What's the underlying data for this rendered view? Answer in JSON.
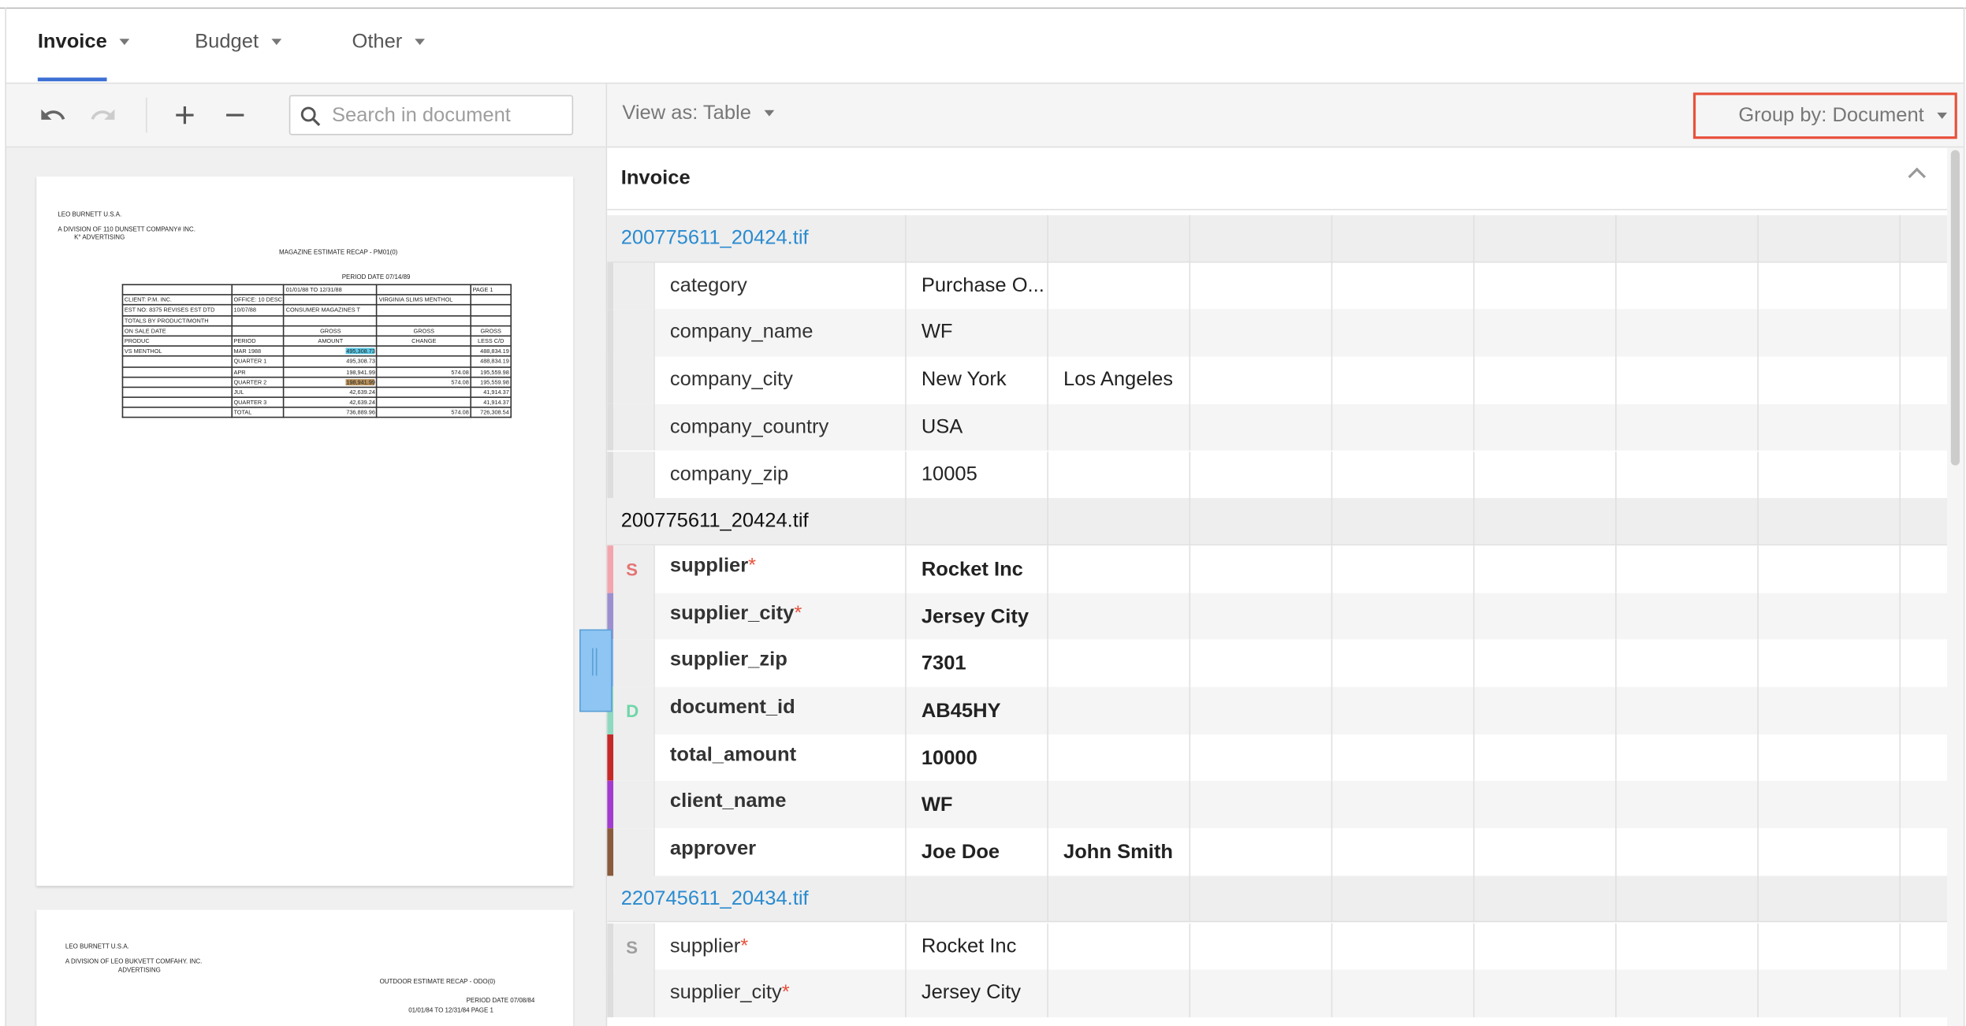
{
  "tabs": [
    "Invoice",
    "Budget",
    "Other"
  ],
  "toolbar": {
    "search_placeholder": "Search in document",
    "view_as": "View as: Table",
    "group_by": "Group by: Document"
  },
  "documents": [
    {
      "lines": [
        "LEO BURNETT U.S.A.",
        "A DIVISION OF 110 DUNSETT COMPANY# INC.",
        "K° ADVERTISING",
        "MAGAZINE ESTIMATE RECAP - PM01(0)",
        "PERIOD DATE 07/14/89"
      ],
      "table": {
        "rows": [
          [
            null,
            null,
            "01/01/88 TO 12/31/88",
            null,
            "PAGE 1"
          ],
          [
            "CLIENT: P.M. INC.",
            "OFFICE: 10 DESC",
            null,
            "VIRGINIA SLIMS MENTHOL",
            null
          ],
          [
            "EST NO: 8375 REVISES EST DTD",
            "10/07/88",
            "CONSUMER MAGAZINES T",
            null,
            null
          ],
          [
            "TOTALS BY PRODUCT/MONTH",
            null,
            null,
            null,
            null
          ],
          [
            "ON SALE DATE",
            null,
            "GROSS",
            "GROSS",
            "GROSS"
          ],
          [
            "PRODUC",
            "PERIOD",
            "AMOUNT",
            "CHANGE",
            "LESS C/D"
          ],
          [
            "VS MENTHOL",
            "MAR 1988",
            {
              "text": "495,308.73",
              "highlight": "#5bc8e6"
            },
            null,
            "488,834.19"
          ],
          [
            null,
            "QUARTER 1",
            "495,308.73",
            null,
            "488,834.19"
          ],
          [
            null,
            "APR",
            "198,941.99",
            "574.08",
            "195,559.98"
          ],
          [
            null,
            "QUARTER 2",
            {
              "text": "198,941.99",
              "highlight": "#b8915a"
            },
            "574.08",
            "195,559.98"
          ],
          [
            null,
            "JUL",
            "42,639.24",
            null,
            "41,914.37"
          ],
          [
            null,
            "QUARTER 3",
            "42,639.24",
            null,
            "41,914.37"
          ],
          [
            null,
            "TOTAL",
            "736,889.96",
            "574.08",
            "726,308.54"
          ]
        ]
      }
    },
    {
      "lines": [
        "LEO BURNETT U.S.A.",
        "A DIVISION OF LEO BUKVETT COMFAHY. INC.",
        "ADVERTISING",
        "OUTDOOR ESTIMATE RECAP - ODO(0)",
        "PERIOD DATE 07/08/84",
        "01/01/84 TO 12/31/84 PAGE 1"
      ]
    }
  ],
  "panel": {
    "title": "Invoice",
    "groups": [
      {
        "name": "200775611_20424.tif",
        "style": "link",
        "rows": [
          {
            "field": "category",
            "bar": "#dddddd",
            "values": [
              "Purchase O..."
            ]
          },
          {
            "field": "company_name",
            "bar": "#dddddd",
            "values": [
              "WF"
            ]
          },
          {
            "field": "company_city",
            "bar": "#dddddd",
            "values": [
              "New York",
              "Los Angeles"
            ]
          },
          {
            "field": "company_country",
            "bar": "#dddddd",
            "values": [
              "USA"
            ]
          },
          {
            "field": "company_zip",
            "bar": "#dddddd",
            "values": [
              "10005"
            ]
          }
        ]
      },
      {
        "name": "200775611_20424.tif",
        "style": "bold",
        "rows": [
          {
            "badge": "S",
            "badge_color": "#e57373",
            "field": "supplier",
            "mark": "*",
            "bar": "#f3a5ad",
            "values": [
              "Rocket Inc"
            ]
          },
          {
            "field": "supplier_city",
            "mark": "*",
            "bar": "#9c8fd0",
            "values": [
              "Jersey City"
            ]
          },
          {
            "field": "supplier_zip",
            "bar": "#7fb6e8",
            "values": [
              "7301"
            ]
          },
          {
            "badge": "D",
            "badge_color": "#6fd6a8",
            "field": "document_id",
            "bar": "#8fd9c0",
            "values": [
              "AB45HY"
            ]
          },
          {
            "field": "total_amount",
            "bar": "#c62828",
            "values": [
              "10000"
            ]
          },
          {
            "field": "client_name",
            "bar": "#a23ccf",
            "values": [
              "WF"
            ]
          },
          {
            "field": "approver",
            "bar": "#8a5a3c",
            "values": [
              "Joe Doe",
              "John Smith"
            ]
          }
        ]
      },
      {
        "name": "220745611_20434.tif",
        "style": "link",
        "rows": [
          {
            "badge": "S",
            "badge_color": "#9e9e9e",
            "field": "supplier",
            "mark": "*",
            "bar": "#dddddd",
            "values": [
              "Rocket Inc"
            ]
          },
          {
            "field": "supplier_city",
            "mark": "*",
            "bar": "#dddddd",
            "values": [
              "Jersey City"
            ]
          }
        ]
      }
    ]
  }
}
